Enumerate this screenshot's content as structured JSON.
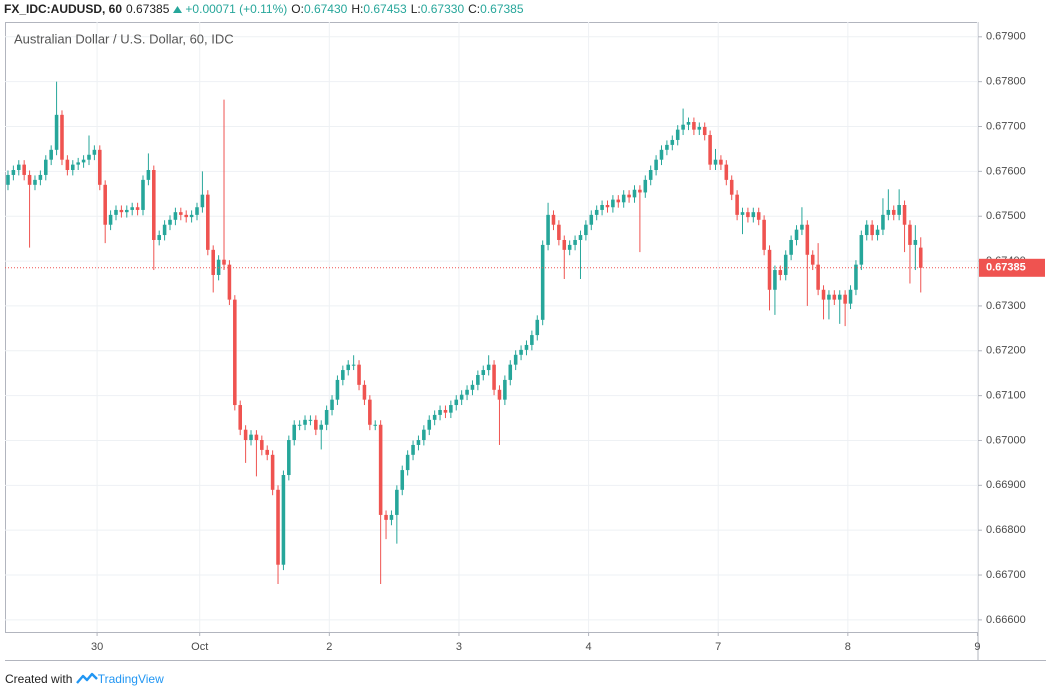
{
  "header": {
    "symbol": "FX_IDC:AUDUSD, 60",
    "last": "0.67385",
    "change": "+0.00071 (+0.11%)",
    "ohlc": [
      {
        "label": "O:",
        "value": "0.67430"
      },
      {
        "label": "H:",
        "value": "0.67453"
      },
      {
        "label": "L:",
        "value": "0.67330"
      },
      {
        "label": "C:",
        "value": "0.67385"
      }
    ]
  },
  "footer": {
    "text": "Created with",
    "brand": "TradingView"
  },
  "chart_data": {
    "type": "candlestick",
    "title": "Australian Dollar / U.S. Dollar, 60, IDC",
    "up_color": "#26a69a",
    "down_color": "#ef5350",
    "grid": true,
    "ylim": [
      0.66573,
      0.67933
    ],
    "yticks": [
      {
        "value": 0.666,
        "label": "0.66600"
      },
      {
        "value": 0.667,
        "label": "0.66700"
      },
      {
        "value": 0.668,
        "label": "0.66800"
      },
      {
        "value": 0.669,
        "label": "0.66900"
      },
      {
        "value": 0.67,
        "label": "0.67000"
      },
      {
        "value": 0.671,
        "label": "0.67100"
      },
      {
        "value": 0.672,
        "label": "0.67200"
      },
      {
        "value": 0.673,
        "label": "0.67300"
      },
      {
        "value": 0.674,
        "label": "0.67400"
      },
      {
        "value": 0.675,
        "label": "0.67500"
      },
      {
        "value": 0.676,
        "label": "0.67600"
      },
      {
        "value": 0.677,
        "label": "0.67700"
      },
      {
        "value": 0.678,
        "label": "0.67800"
      },
      {
        "value": 0.679,
        "label": "0.67900"
      }
    ],
    "xlim": [
      -0.55,
      179.6
    ],
    "xticks": [
      {
        "value": 16.5,
        "label": "30"
      },
      {
        "value": 35.5,
        "label": "Oct"
      },
      {
        "value": 59.5,
        "label": "2"
      },
      {
        "value": 83.5,
        "label": "3"
      },
      {
        "value": 107.5,
        "label": "4"
      },
      {
        "value": 131.5,
        "label": "7"
      },
      {
        "value": 155.5,
        "label": "8"
      },
      {
        "value": 179.5,
        "label": "9"
      }
    ],
    "last_price": {
      "value": 0.67385,
      "label": "0.67385"
    },
    "open": [
      0.6757,
      0.67592,
      0.67603,
      0.67615,
      0.67592,
      0.6757,
      0.67581,
      0.67592,
      0.67626,
      0.67648,
      0.67726,
      0.67626,
      0.67603,
      0.67615,
      0.6762,
      0.67626,
      0.67637,
      0.67648,
      0.6757,
      0.67481,
      0.67503,
      0.67514,
      0.67509,
      0.67514,
      0.6752,
      0.67514,
      0.67581,
      0.67603,
      0.67447,
      0.67458,
      0.67481,
      0.67492,
      0.67509,
      0.67503,
      0.67498,
      0.67503,
      0.6752,
      0.67548,
      0.67425,
      0.67369,
      0.67403,
      0.67392,
      0.67314,
      0.67079,
      0.67024,
      0.67001,
      0.67013,
      0.67001,
      0.66979,
      0.66968,
      0.6689,
      0.66723,
      0.66923,
      0.67001,
      0.67035,
      0.67035,
      0.67046,
      0.67046,
      0.67024,
      0.67035,
      0.67068,
      0.67091,
      0.67135,
      0.67157,
      0.67169,
      0.67169,
      0.67124,
      0.67091,
      0.67035,
      0.67035,
      0.66834,
      0.66823,
      0.66834,
      0.6689,
      0.66934,
      0.66968,
      0.6699,
      0.67001,
      0.67024,
      0.67046,
      0.67057,
      0.67068,
      0.67062,
      0.67079,
      0.67091,
      0.67102,
      0.67113,
      0.67124,
      0.67146,
      0.67157,
      0.67169,
      0.67113,
      0.67091,
      0.67135,
      0.67169,
      0.67191,
      0.67202,
      0.67213,
      0.67235,
      0.67269,
      0.67436,
      0.67503,
      0.67481,
      0.67447,
      0.67425,
      0.67436,
      0.67447,
      0.67458,
      0.67481,
      0.67503,
      0.67514,
      0.67525,
      0.6752,
      0.67537,
      0.67531,
      0.67548,
      0.67542,
      0.67559,
      0.67553,
      0.67581,
      0.67603,
      0.67626,
      0.67648,
      0.67659,
      0.6767,
      0.67693,
      0.67704,
      0.6771,
      0.67693,
      0.67699,
      0.67681,
      0.67615,
      0.67626,
      0.67615,
      0.67581,
      0.67548,
      0.67503,
      0.67509,
      0.67498,
      0.67509,
      0.67492,
      0.67425,
      0.67336,
      0.6738,
      0.67369,
      0.67414,
      0.67447,
      0.6747,
      0.67481,
      0.67414,
      0.67392,
      0.67336,
      0.67314,
      0.67325,
      0.67314,
      0.67325,
      0.67305,
      0.67336,
      0.67392,
      0.67458,
      0.67481,
      0.67458,
      0.6747,
      0.67503,
      0.67514,
      0.67503,
      0.67525,
      0.67481,
      0.67436,
      0.6743
    ],
    "high": [
      0.67602,
      0.67613,
      0.67625,
      0.67625,
      0.67602,
      0.67591,
      0.67602,
      0.67636,
      0.67658,
      0.678,
      0.67736,
      0.67636,
      0.67625,
      0.6763,
      0.67636,
      0.6768,
      0.67658,
      0.67658,
      0.6758,
      0.67513,
      0.67524,
      0.67524,
      0.67524,
      0.6753,
      0.6753,
      0.67591,
      0.6764,
      0.67613,
      0.67468,
      0.67491,
      0.67502,
      0.67519,
      0.67519,
      0.67513,
      0.67513,
      0.6753,
      0.676,
      0.67558,
      0.67435,
      0.67413,
      0.6776,
      0.67402,
      0.67324,
      0.67089,
      0.67034,
      0.67023,
      0.67023,
      0.67011,
      0.66989,
      0.66978,
      0.669,
      0.66933,
      0.67011,
      0.67045,
      0.67045,
      0.67056,
      0.67056,
      0.67056,
      0.67045,
      0.67078,
      0.67101,
      0.67145,
      0.67167,
      0.67179,
      0.6719,
      0.67179,
      0.67134,
      0.67101,
      0.67045,
      0.67045,
      0.66844,
      0.66844,
      0.669,
      0.66944,
      0.66978,
      0.67,
      0.67011,
      0.67034,
      0.67056,
      0.67067,
      0.67078,
      0.67078,
      0.67089,
      0.67101,
      0.67112,
      0.67123,
      0.67134,
      0.67156,
      0.67167,
      0.6719,
      0.67179,
      0.67123,
      0.67145,
      0.67179,
      0.67201,
      0.67212,
      0.67223,
      0.67245,
      0.67279,
      0.67446,
      0.6753,
      0.67513,
      0.67491,
      0.67457,
      0.67446,
      0.67457,
      0.67468,
      0.67491,
      0.67513,
      0.67524,
      0.67535,
      0.67535,
      0.67547,
      0.67547,
      0.67558,
      0.67558,
      0.67569,
      0.67569,
      0.67591,
      0.67613,
      0.67636,
      0.67658,
      0.67669,
      0.6768,
      0.67703,
      0.6774,
      0.6772,
      0.6772,
      0.67709,
      0.67709,
      0.67691,
      0.6765,
      0.67636,
      0.67625,
      0.67591,
      0.67558,
      0.67519,
      0.67519,
      0.67519,
      0.67519,
      0.67502,
      0.67435,
      0.6739,
      0.6739,
      0.67424,
      0.67457,
      0.6748,
      0.6752,
      0.67491,
      0.67424,
      0.6744,
      0.67346,
      0.67335,
      0.67335,
      0.67335,
      0.67335,
      0.67346,
      0.67402,
      0.67468,
      0.67491,
      0.67491,
      0.6748,
      0.6754,
      0.6756,
      0.67524,
      0.6756,
      0.67535,
      0.67491,
      0.6748,
      0.67453
    ],
    "low": [
      0.67558,
      0.6758,
      0.67591,
      0.6758,
      0.6743,
      0.67558,
      0.67569,
      0.6758,
      0.67614,
      0.67636,
      0.67614,
      0.67591,
      0.67591,
      0.67603,
      0.67608,
      0.67614,
      0.67625,
      0.67558,
      0.6744,
      0.67469,
      0.67491,
      0.67497,
      0.67497,
      0.67502,
      0.67502,
      0.67502,
      0.67569,
      0.6738,
      0.67435,
      0.67446,
      0.67469,
      0.6748,
      0.67491,
      0.67486,
      0.67486,
      0.67491,
      0.67508,
      0.67413,
      0.6733,
      0.67357,
      0.6738,
      0.67302,
      0.67067,
      0.67012,
      0.6695,
      0.66989,
      0.6692,
      0.66967,
      0.66956,
      0.66878,
      0.6668,
      0.66711,
      0.66911,
      0.66989,
      0.67023,
      0.67023,
      0.67034,
      0.67012,
      0.6698,
      0.67023,
      0.67056,
      0.67079,
      0.67123,
      0.67145,
      0.67157,
      0.67112,
      0.67079,
      0.67023,
      0.67023,
      0.6668,
      0.6678,
      0.66811,
      0.6677,
      0.66878,
      0.66922,
      0.66956,
      0.66978,
      0.66989,
      0.67012,
      0.67034,
      0.67045,
      0.6705,
      0.6705,
      0.67067,
      0.67079,
      0.6709,
      0.67101,
      0.67112,
      0.67134,
      0.67145,
      0.67101,
      0.6699,
      0.67079,
      0.67123,
      0.67157,
      0.67179,
      0.6719,
      0.67201,
      0.67223,
      0.67257,
      0.67424,
      0.67469,
      0.67435,
      0.6736,
      0.67413,
      0.67424,
      0.6736,
      0.67446,
      0.67469,
      0.67491,
      0.67502,
      0.67508,
      0.67508,
      0.67519,
      0.67519,
      0.6753,
      0.6753,
      0.6742,
      0.67541,
      0.67569,
      0.67591,
      0.67614,
      0.67636,
      0.67647,
      0.67658,
      0.67681,
      0.67692,
      0.67681,
      0.67681,
      0.67669,
      0.67603,
      0.67603,
      0.67603,
      0.67569,
      0.67536,
      0.67491,
      0.6746,
      0.67486,
      0.67486,
      0.6748,
      0.67413,
      0.6729,
      0.6728,
      0.67357,
      0.67357,
      0.67402,
      0.67435,
      0.67458,
      0.673,
      0.6738,
      0.67324,
      0.6727,
      0.6727,
      0.67302,
      0.6726,
      0.67255,
      0.67293,
      0.67324,
      0.6738,
      0.67446,
      0.67446,
      0.67446,
      0.67458,
      0.67491,
      0.67491,
      0.67491,
      0.6742,
      0.6735,
      0.6738,
      0.6733
    ],
    "close": [
      0.67592,
      0.67603,
      0.67615,
      0.67592,
      0.6757,
      0.67581,
      0.67592,
      0.67626,
      0.67648,
      0.67726,
      0.67626,
      0.67603,
      0.67615,
      0.6762,
      0.67626,
      0.67637,
      0.67648,
      0.6757,
      0.67481,
      0.67503,
      0.67514,
      0.67509,
      0.67514,
      0.6752,
      0.67514,
      0.67581,
      0.67603,
      0.67447,
      0.67458,
      0.67481,
      0.67492,
      0.67509,
      0.67503,
      0.67498,
      0.67503,
      0.6752,
      0.67548,
      0.67425,
      0.67369,
      0.67403,
      0.67392,
      0.67314,
      0.67079,
      0.67024,
      0.67001,
      0.67013,
      0.67001,
      0.66979,
      0.66968,
      0.6689,
      0.66723,
      0.66923,
      0.67001,
      0.67035,
      0.67035,
      0.67046,
      0.67046,
      0.67024,
      0.67035,
      0.67068,
      0.67091,
      0.67135,
      0.67157,
      0.67169,
      0.67169,
      0.67124,
      0.67091,
      0.67035,
      0.67035,
      0.66834,
      0.66823,
      0.66834,
      0.6689,
      0.66934,
      0.66968,
      0.6699,
      0.67001,
      0.67024,
      0.67046,
      0.67057,
      0.67068,
      0.67062,
      0.67079,
      0.67091,
      0.67102,
      0.67113,
      0.67124,
      0.67146,
      0.67157,
      0.67169,
      0.67113,
      0.67091,
      0.67135,
      0.67169,
      0.67191,
      0.67202,
      0.67213,
      0.67235,
      0.67269,
      0.67436,
      0.67503,
      0.67481,
      0.67447,
      0.67425,
      0.67436,
      0.67447,
      0.67458,
      0.67481,
      0.67503,
      0.67514,
      0.67525,
      0.6752,
      0.67537,
      0.67531,
      0.67548,
      0.67542,
      0.67559,
      0.67553,
      0.67581,
      0.67603,
      0.67626,
      0.67648,
      0.67659,
      0.6767,
      0.67693,
      0.67704,
      0.6771,
      0.67693,
      0.67699,
      0.67681,
      0.67615,
      0.67626,
      0.67615,
      0.67581,
      0.67548,
      0.67503,
      0.67509,
      0.67498,
      0.67509,
      0.67492,
      0.67425,
      0.67336,
      0.6738,
      0.67369,
      0.67414,
      0.67447,
      0.6747,
      0.67481,
      0.67414,
      0.67392,
      0.67336,
      0.67314,
      0.67325,
      0.67314,
      0.67325,
      0.67305,
      0.67336,
      0.67392,
      0.67458,
      0.67481,
      0.67458,
      0.6747,
      0.67503,
      0.67514,
      0.67503,
      0.67525,
      0.67481,
      0.67436,
      0.67447,
      0.67385
    ]
  }
}
